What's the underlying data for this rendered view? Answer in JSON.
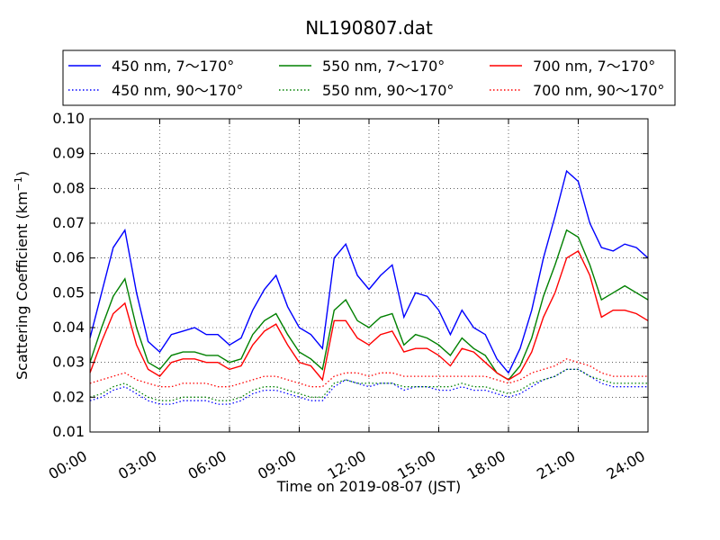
{
  "chart_data": {
    "type": "line",
    "title": "NL190807.dat",
    "xlabel": "Time on 2019-08-07 (JST)",
    "ylabel_main": "Scattering Coefficient (km",
    "ylabel_sup": "−1",
    "ylabel_close": ")",
    "x_unit": "hours",
    "xlim": [
      0,
      24
    ],
    "ylim": [
      0.01,
      0.1
    ],
    "grid": true,
    "legend_placement": "top",
    "x_ticks": [
      {
        "value": 0,
        "label": "00:00"
      },
      {
        "value": 3,
        "label": "03:00"
      },
      {
        "value": 6,
        "label": "06:00"
      },
      {
        "value": 9,
        "label": "09:00"
      },
      {
        "value": 12,
        "label": "12:00"
      },
      {
        "value": 15,
        "label": "15:00"
      },
      {
        "value": 18,
        "label": "18:00"
      },
      {
        "value": 21,
        "label": "21:00"
      },
      {
        "value": 24,
        "label": "24:00"
      }
    ],
    "y_ticks": [
      {
        "value": 0.01,
        "label": "0.01"
      },
      {
        "value": 0.02,
        "label": "0.02"
      },
      {
        "value": 0.03,
        "label": "0.03"
      },
      {
        "value": 0.04,
        "label": "0.04"
      },
      {
        "value": 0.05,
        "label": "0.05"
      },
      {
        "value": 0.06,
        "label": "0.06"
      },
      {
        "value": 0.07,
        "label": "0.07"
      },
      {
        "value": 0.08,
        "label": "0.08"
      },
      {
        "value": 0.09,
        "label": "0.09"
      },
      {
        "value": 0.1,
        "label": "0.10"
      }
    ],
    "x": [
      0,
      0.5,
      1,
      1.5,
      2,
      2.5,
      3,
      3.5,
      4,
      4.5,
      5,
      5.5,
      6,
      6.5,
      7,
      7.5,
      8,
      8.5,
      9,
      9.5,
      10,
      10.5,
      11,
      11.5,
      12,
      12.5,
      13,
      13.5,
      14,
      14.5,
      15,
      15.5,
      16,
      16.5,
      17,
      17.5,
      18,
      18.5,
      19,
      19.5,
      20,
      20.5,
      21,
      21.5,
      22,
      22.5,
      23,
      23.5,
      24
    ],
    "series": [
      {
        "name": "450 nm, 7～170°",
        "color": "#0000ff",
        "style": "solid",
        "values": [
          0.037,
          0.05,
          0.063,
          0.068,
          0.05,
          0.036,
          0.033,
          0.038,
          0.039,
          0.04,
          0.038,
          0.038,
          0.035,
          0.037,
          0.045,
          0.051,
          0.055,
          0.046,
          0.04,
          0.038,
          0.034,
          0.06,
          0.064,
          0.055,
          0.051,
          0.055,
          0.058,
          0.043,
          0.05,
          0.049,
          0.045,
          0.038,
          0.045,
          0.04,
          0.038,
          0.031,
          0.027,
          0.034,
          0.045,
          0.06,
          0.072,
          0.085,
          0.082,
          0.07,
          0.063,
          0.062,
          0.064,
          0.063,
          0.06
        ]
      },
      {
        "name": "450 nm, 90～170°",
        "color": "#0000ff",
        "style": "dotted",
        "values": [
          0.019,
          0.02,
          0.022,
          0.023,
          0.021,
          0.019,
          0.018,
          0.018,
          0.019,
          0.019,
          0.019,
          0.018,
          0.018,
          0.019,
          0.021,
          0.022,
          0.022,
          0.021,
          0.02,
          0.019,
          0.019,
          0.023,
          0.025,
          0.024,
          0.023,
          0.024,
          0.024,
          0.022,
          0.023,
          0.023,
          0.022,
          0.022,
          0.023,
          0.022,
          0.022,
          0.021,
          0.02,
          0.021,
          0.023,
          0.025,
          0.026,
          0.028,
          0.028,
          0.026,
          0.024,
          0.023,
          0.023,
          0.023,
          0.023
        ]
      },
      {
        "name": "550 nm, 7～170°",
        "color": "#008000",
        "style": "solid",
        "values": [
          0.03,
          0.04,
          0.049,
          0.054,
          0.04,
          0.03,
          0.028,
          0.032,
          0.033,
          0.033,
          0.032,
          0.032,
          0.03,
          0.031,
          0.038,
          0.042,
          0.044,
          0.038,
          0.033,
          0.031,
          0.028,
          0.045,
          0.048,
          0.042,
          0.04,
          0.043,
          0.044,
          0.035,
          0.038,
          0.037,
          0.035,
          0.032,
          0.037,
          0.034,
          0.032,
          0.027,
          0.025,
          0.029,
          0.037,
          0.049,
          0.058,
          0.068,
          0.066,
          0.058,
          0.048,
          0.05,
          0.052,
          0.05,
          0.048
        ]
      },
      {
        "name": "550 nm, 90～170°",
        "color": "#008000",
        "style": "dotted",
        "values": [
          0.02,
          0.021,
          0.023,
          0.024,
          0.022,
          0.02,
          0.019,
          0.019,
          0.02,
          0.02,
          0.02,
          0.019,
          0.019,
          0.02,
          0.022,
          0.023,
          0.023,
          0.022,
          0.021,
          0.02,
          0.02,
          0.024,
          0.025,
          0.024,
          0.024,
          0.024,
          0.024,
          0.023,
          0.023,
          0.023,
          0.023,
          0.023,
          0.024,
          0.023,
          0.023,
          0.022,
          0.021,
          0.022,
          0.024,
          0.025,
          0.026,
          0.028,
          0.028,
          0.026,
          0.025,
          0.024,
          0.024,
          0.024,
          0.024
        ]
      },
      {
        "name": "700 nm, 7～170°",
        "color": "#ff0000",
        "style": "solid",
        "values": [
          0.027,
          0.036,
          0.044,
          0.047,
          0.035,
          0.028,
          0.026,
          0.03,
          0.031,
          0.031,
          0.03,
          0.03,
          0.028,
          0.029,
          0.035,
          0.039,
          0.041,
          0.035,
          0.03,
          0.029,
          0.025,
          0.042,
          0.042,
          0.037,
          0.035,
          0.038,
          0.039,
          0.033,
          0.034,
          0.034,
          0.032,
          0.029,
          0.034,
          0.033,
          0.03,
          0.027,
          0.025,
          0.027,
          0.033,
          0.043,
          0.05,
          0.06,
          0.062,
          0.055,
          0.043,
          0.045,
          0.045,
          0.044,
          0.042
        ]
      },
      {
        "name": "700 nm, 90～170°",
        "color": "#ff0000",
        "style": "dotted",
        "values": [
          0.024,
          0.025,
          0.026,
          0.027,
          0.025,
          0.024,
          0.023,
          0.023,
          0.024,
          0.024,
          0.024,
          0.023,
          0.023,
          0.024,
          0.025,
          0.026,
          0.026,
          0.025,
          0.024,
          0.023,
          0.023,
          0.026,
          0.027,
          0.027,
          0.026,
          0.027,
          0.027,
          0.026,
          0.026,
          0.026,
          0.026,
          0.026,
          0.026,
          0.026,
          0.026,
          0.025,
          0.024,
          0.025,
          0.027,
          0.028,
          0.029,
          0.031,
          0.03,
          0.029,
          0.027,
          0.026,
          0.026,
          0.026,
          0.026
        ]
      }
    ]
  }
}
